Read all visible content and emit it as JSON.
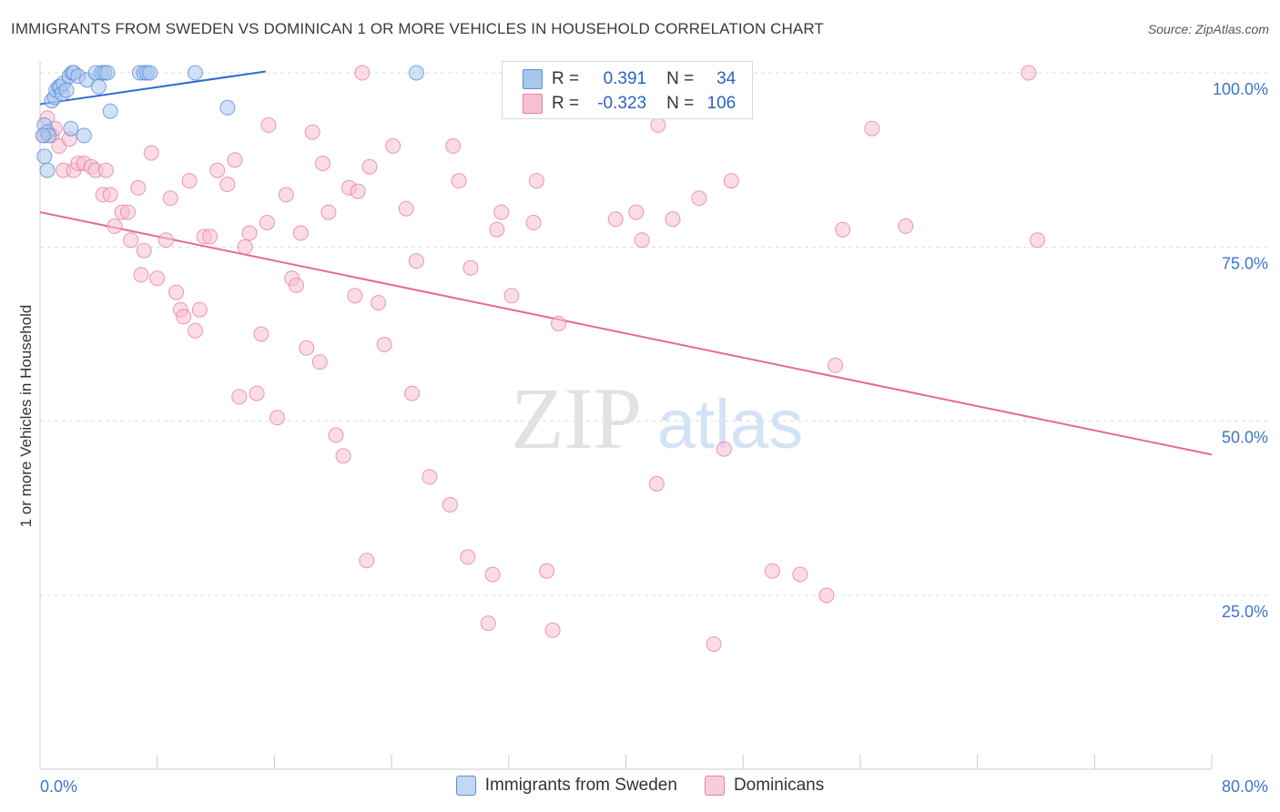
{
  "title": "IMMIGRANTS FROM SWEDEN VS DOMINICAN 1 OR MORE VEHICLES IN HOUSEHOLD CORRELATION CHART",
  "source": "Source: ZipAtlas.com",
  "watermark": {
    "zip": "ZIP",
    "atlas": "atlas"
  },
  "legend": {
    "rows": [
      {
        "r_label": "R =",
        "r_value": "0.391",
        "n_label": "N =",
        "n_value": "34"
      },
      {
        "r_label": "R =",
        "r_value": "-0.323",
        "n_label": "N =",
        "n_value": "106"
      }
    ]
  },
  "bottom_legend": [
    "Immigrants from Sweden",
    "Dominicans"
  ],
  "colors": {
    "blue_fill": "#a9c6ee",
    "blue_stroke": "#5b8fd6",
    "blue_line": "#2a6dd0",
    "pink_fill": "#f7c0d2",
    "pink_stroke": "#e87fa3",
    "pink_line": "#e46a94",
    "axis_text": "#3f74c9",
    "grid": "#dddddd"
  },
  "chart_data": {
    "type": "scatter",
    "title": "IMMIGRANTS FROM SWEDEN VS DOMINICAN 1 OR MORE VEHICLES IN HOUSEHOLD CORRELATION CHART",
    "xlabel": "",
    "ylabel": "1 or more Vehicles in Household",
    "xlim": [
      0,
      80
    ],
    "ylim": [
      0,
      104
    ],
    "x_tick_labels": [
      "0.0%",
      "80.0%"
    ],
    "y_ticks": [
      25,
      50,
      75,
      100
    ],
    "y_tick_labels": [
      "25.0%",
      "50.0%",
      "75.0%",
      "100.0%"
    ],
    "grid": "horizontal dashed",
    "series": [
      {
        "name": "Immigrants from Sweden",
        "r": 0.391,
        "n": 34,
        "trend": {
          "x": [
            0,
            15.4
          ],
          "y": [
            95.5,
            100.2
          ]
        },
        "points": [
          [
            0.3,
            88.0
          ],
          [
            0.3,
            92.5
          ],
          [
            0.5,
            86.0
          ],
          [
            0.5,
            91.5
          ],
          [
            0.6,
            91.0
          ],
          [
            0.8,
            96.0
          ],
          [
            1.0,
            96.5
          ],
          [
            1.1,
            97.5
          ],
          [
            1.3,
            98.0
          ],
          [
            1.4,
            98.0
          ],
          [
            1.5,
            97.0
          ],
          [
            1.6,
            98.5
          ],
          [
            1.8,
            97.5
          ],
          [
            2.0,
            99.5
          ],
          [
            2.2,
            100.0
          ],
          [
            2.3,
            100.0
          ],
          [
            2.6,
            99.5
          ],
          [
            3.0,
            91.0
          ],
          [
            3.2,
            99.0
          ],
          [
            3.8,
            100.0
          ],
          [
            4.0,
            98.0
          ],
          [
            4.2,
            100.0
          ],
          [
            4.4,
            100.0
          ],
          [
            4.6,
            100.0
          ],
          [
            4.8,
            94.5
          ],
          [
            6.8,
            100.0
          ],
          [
            7.1,
            100.0
          ],
          [
            7.3,
            100.0
          ],
          [
            7.5,
            100.0
          ],
          [
            10.6,
            100.0
          ],
          [
            12.8,
            95.0
          ],
          [
            25.7,
            100.0
          ],
          [
            0.2,
            91.0
          ],
          [
            2.1,
            92.0
          ]
        ]
      },
      {
        "name": "Dominicans",
        "r": -0.323,
        "n": 106,
        "trend": {
          "x": [
            0,
            80
          ],
          "y": [
            80.0,
            45.2
          ]
        },
        "points": [
          [
            0.3,
            91.0
          ],
          [
            0.5,
            93.5
          ],
          [
            0.8,
            91.0
          ],
          [
            1.0,
            92.0
          ],
          [
            1.3,
            89.5
          ],
          [
            1.6,
            86.0
          ],
          [
            2.0,
            90.5
          ],
          [
            2.3,
            86.0
          ],
          [
            2.6,
            87.0
          ],
          [
            3.0,
            87.0
          ],
          [
            3.5,
            86.5
          ],
          [
            3.8,
            86.0
          ],
          [
            4.5,
            86.0
          ],
          [
            4.3,
            82.5
          ],
          [
            4.8,
            82.5
          ],
          [
            5.1,
            78.0
          ],
          [
            5.6,
            80.0
          ],
          [
            6.0,
            80.0
          ],
          [
            6.2,
            76.0
          ],
          [
            6.7,
            83.5
          ],
          [
            6.9,
            71.0
          ],
          [
            7.1,
            74.5
          ],
          [
            7.6,
            88.5
          ],
          [
            8.0,
            70.5
          ],
          [
            8.6,
            76.0
          ],
          [
            8.9,
            82.0
          ],
          [
            9.3,
            68.5
          ],
          [
            9.6,
            66.0
          ],
          [
            9.8,
            65.0
          ],
          [
            10.2,
            84.5
          ],
          [
            10.6,
            63.0
          ],
          [
            10.9,
            66.0
          ],
          [
            11.2,
            76.5
          ],
          [
            11.6,
            76.5
          ],
          [
            12.1,
            86.0
          ],
          [
            12.8,
            84.0
          ],
          [
            13.3,
            87.5
          ],
          [
            13.6,
            53.5
          ],
          [
            14.0,
            75.0
          ],
          [
            14.3,
            77.0
          ],
          [
            14.8,
            54.0
          ],
          [
            15.1,
            62.5
          ],
          [
            15.5,
            78.5
          ],
          [
            15.6,
            92.5
          ],
          [
            16.2,
            50.5
          ],
          [
            16.8,
            82.5
          ],
          [
            17.2,
            70.5
          ],
          [
            17.5,
            69.5
          ],
          [
            17.8,
            77.0
          ],
          [
            18.2,
            60.5
          ],
          [
            18.6,
            91.5
          ],
          [
            19.1,
            58.5
          ],
          [
            19.3,
            87.0
          ],
          [
            19.7,
            80.0
          ],
          [
            20.2,
            48.0
          ],
          [
            20.7,
            45.0
          ],
          [
            21.1,
            83.5
          ],
          [
            21.5,
            68.0
          ],
          [
            21.7,
            83.0
          ],
          [
            22.0,
            100.0
          ],
          [
            22.3,
            30.0
          ],
          [
            22.5,
            86.5
          ],
          [
            23.1,
            67.0
          ],
          [
            23.5,
            61.0
          ],
          [
            24.1,
            89.5
          ],
          [
            25.0,
            80.5
          ],
          [
            25.4,
            54.0
          ],
          [
            25.7,
            73.0
          ],
          [
            26.6,
            42.0
          ],
          [
            28.0,
            38.0
          ],
          [
            28.2,
            89.5
          ],
          [
            28.6,
            84.5
          ],
          [
            29.2,
            30.5
          ],
          [
            29.4,
            72.0
          ],
          [
            30.6,
            21.0
          ],
          [
            30.9,
            28.0
          ],
          [
            31.2,
            77.5
          ],
          [
            31.5,
            80.0
          ],
          [
            32.2,
            68.0
          ],
          [
            32.6,
            100.0
          ],
          [
            33.7,
            78.5
          ],
          [
            33.9,
            84.5
          ],
          [
            34.6,
            28.5
          ],
          [
            35.0,
            20.0
          ],
          [
            35.4,
            64.0
          ],
          [
            39.3,
            79.0
          ],
          [
            40.7,
            80.0
          ],
          [
            41.1,
            76.0
          ],
          [
            42.1,
            41.0
          ],
          [
            42.2,
            92.5
          ],
          [
            43.2,
            79.0
          ],
          [
            44.8,
            100.0
          ],
          [
            45.0,
            82.0
          ],
          [
            46.0,
            18.0
          ],
          [
            46.7,
            46.0
          ],
          [
            47.2,
            84.5
          ],
          [
            47.8,
            100.0
          ],
          [
            50.0,
            28.5
          ],
          [
            51.9,
            28.0
          ],
          [
            53.7,
            25.0
          ],
          [
            54.3,
            58.0
          ],
          [
            54.8,
            77.5
          ],
          [
            56.8,
            92.0
          ],
          [
            59.1,
            78.0
          ],
          [
            68.1,
            76.0
          ],
          [
            67.5,
            100.0
          ]
        ]
      }
    ]
  }
}
